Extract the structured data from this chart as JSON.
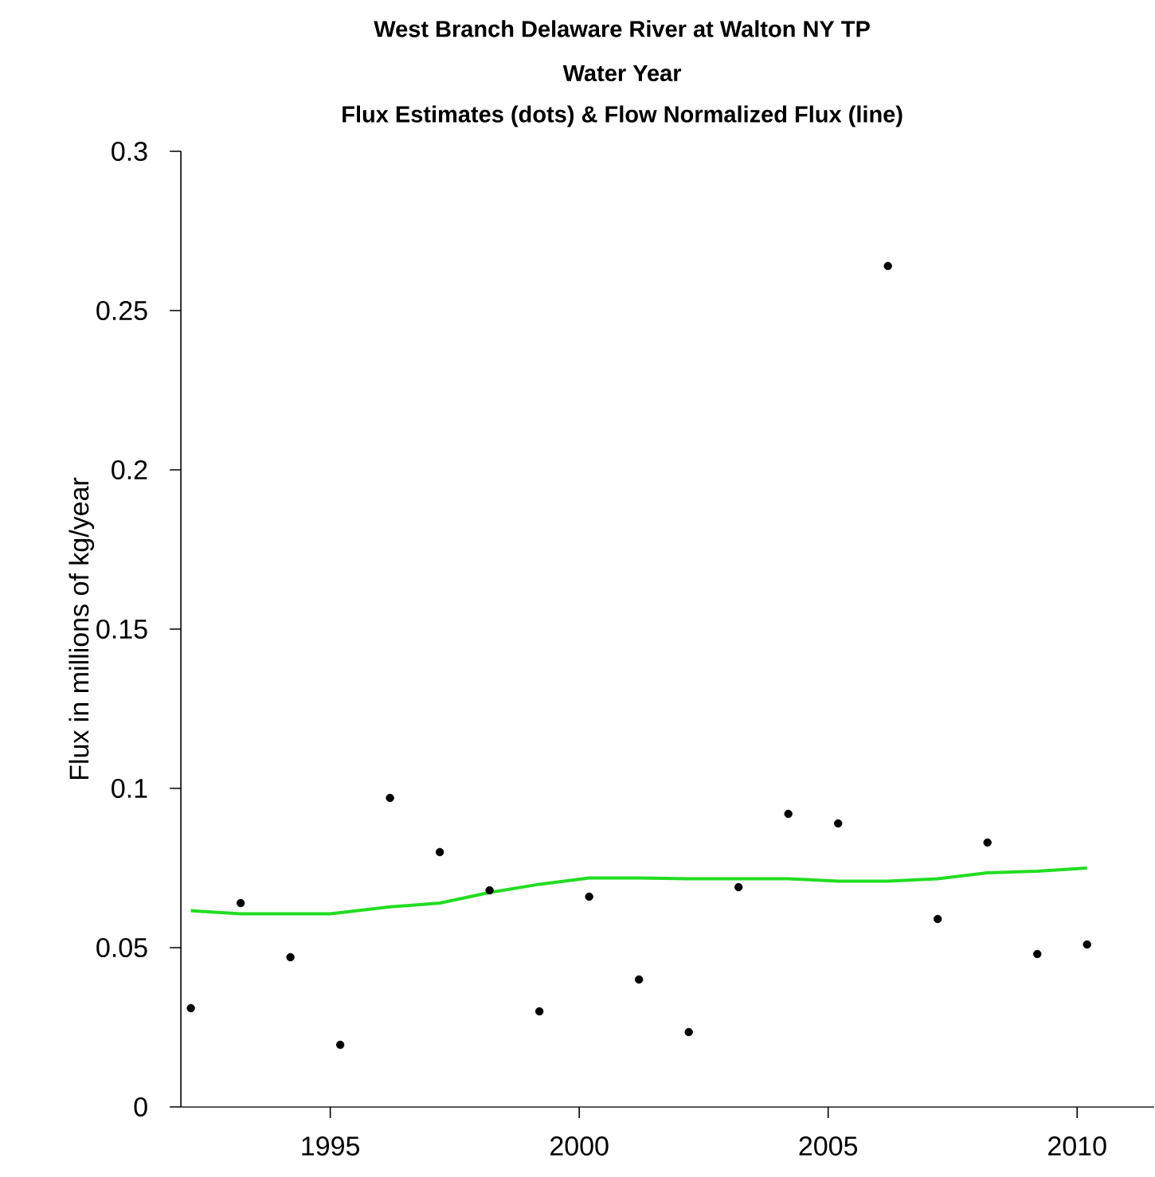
{
  "chart_data": {
    "type": "scatter",
    "title": "West Branch Delaware River at Walton NY   TP",
    "subtitle": "Water Year",
    "annotations": [
      "Flux Estimates (dots) & Flow Normalized Flux (line)"
    ],
    "ylabel": "Flux in millions of kg/year",
    "xlim": [
      1992,
      2011.55
    ],
    "ylim": [
      0,
      0.3
    ],
    "xticks": [
      1995,
      2000,
      2005,
      2010
    ],
    "yticks": [
      0,
      0.05,
      0.1,
      0.15,
      0.2,
      0.25,
      0.3
    ],
    "series": [
      {
        "color": "#000000",
        "x": [
          1992.2,
          1993.2,
          1994.2,
          1995.2,
          1996.2,
          1997.2,
          1998.2,
          1999.2,
          2000.2,
          2001.2,
          2002.2,
          2003.2,
          2004.2,
          2005.2,
          2006.2,
          2007.2,
          2008.2,
          2009.2,
          2010.2
        ],
        "values": [
          0.031,
          0.064,
          0.047,
          0.0195,
          0.097,
          0.08,
          0.068,
          0.03,
          0.066,
          0.04,
          0.0235,
          0.069,
          0.092,
          0.089,
          0.264,
          0.059,
          0.083,
          0.048,
          0.051
        ]
      },
      {
        "type": "line",
        "color": "#22dd22",
        "x": [
          1992.2,
          1993.2,
          1995.0,
          1996.2,
          1997.2,
          1998.2,
          1999.2,
          2000.2,
          2001.2,
          2002.2,
          2003.2,
          2004.2,
          2005.2,
          2006.2,
          2007.2,
          2008.2,
          2009.2,
          2010.2
        ],
        "values": [
          0.0616,
          0.0606,
          0.0606,
          0.0628,
          0.064,
          0.0673,
          0.0699,
          0.0719,
          0.0719,
          0.0716,
          0.0716,
          0.0716,
          0.0709,
          0.0709,
          0.0716,
          0.0735,
          0.074,
          0.075
        ]
      }
    ]
  }
}
